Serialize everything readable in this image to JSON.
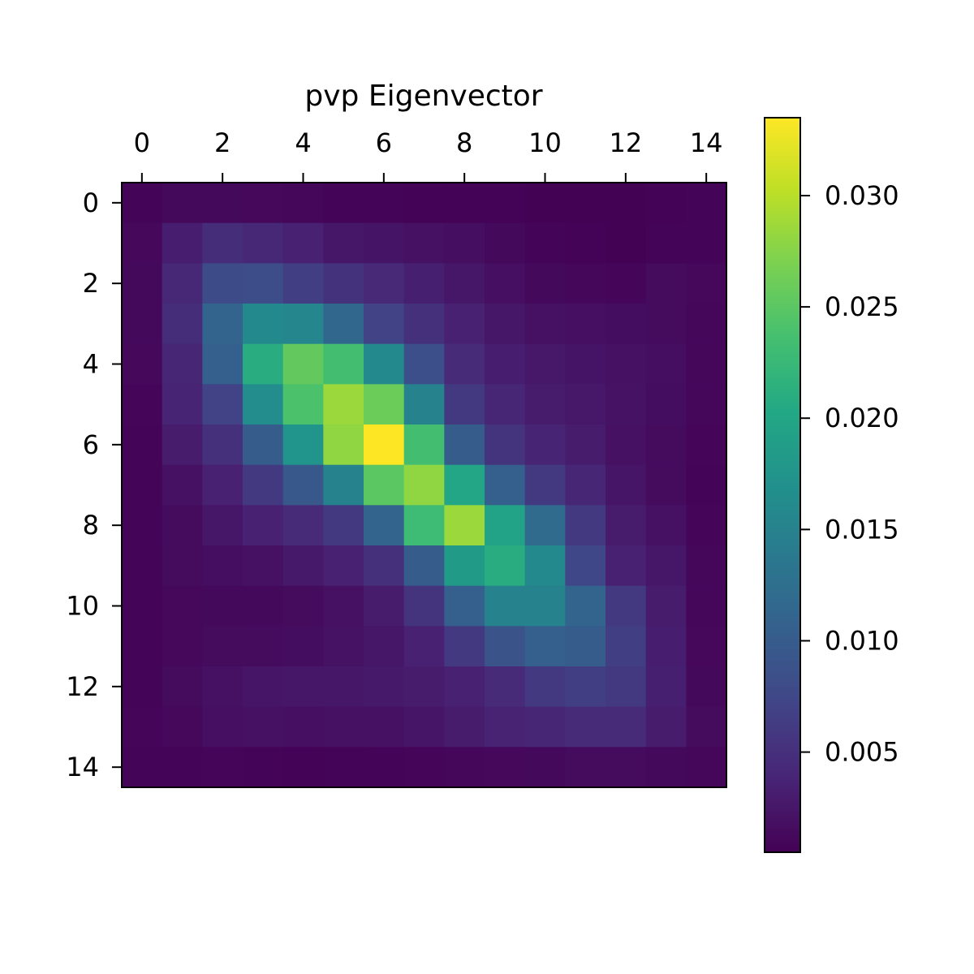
{
  "chart_data": {
    "type": "heatmap",
    "title": "pvp Eigenvector",
    "xlabel": "",
    "ylabel": "",
    "colormap": "viridis",
    "x_ticks": [
      0,
      2,
      4,
      6,
      8,
      10,
      12,
      14
    ],
    "y_ticks": [
      0,
      2,
      4,
      6,
      8,
      10,
      12,
      14
    ],
    "x_tick_position": "top",
    "y_origin": "top",
    "grid": false,
    "colorbar": {
      "vmin": 0.0005,
      "vmax": 0.0335,
      "ticks": [
        0.005,
        0.01,
        0.015,
        0.02,
        0.025,
        0.03
      ],
      "tick_labels": [
        "0.005",
        "0.010",
        "0.015",
        "0.020",
        "0.025",
        "0.030"
      ],
      "position": "right"
    },
    "values": [
      [
        0.0009,
        0.0013,
        0.0013,
        0.0012,
        0.0011,
        0.0009,
        0.0008,
        0.0007,
        0.0007,
        0.0007,
        0.0006,
        0.0006,
        0.0006,
        0.0007,
        0.0008
      ],
      [
        0.0012,
        0.0032,
        0.0047,
        0.0042,
        0.0035,
        0.0025,
        0.0023,
        0.002,
        0.0017,
        0.0013,
        0.0009,
        0.0007,
        0.0006,
        0.0008,
        0.0009
      ],
      [
        0.0013,
        0.0042,
        0.008,
        0.0082,
        0.0065,
        0.0052,
        0.0043,
        0.0033,
        0.0025,
        0.0018,
        0.0013,
        0.0011,
        0.001,
        0.0014,
        0.0012
      ],
      [
        0.0013,
        0.0047,
        0.011,
        0.016,
        0.0155,
        0.0115,
        0.007,
        0.005,
        0.0035,
        0.0025,
        0.002,
        0.0018,
        0.0016,
        0.0015,
        0.0011
      ],
      [
        0.0012,
        0.004,
        0.0105,
        0.021,
        0.0255,
        0.0235,
        0.016,
        0.0085,
        0.0045,
        0.0032,
        0.0027,
        0.0023,
        0.002,
        0.0017,
        0.0011
      ],
      [
        0.001,
        0.0038,
        0.007,
        0.0165,
        0.024,
        0.0285,
        0.026,
        0.015,
        0.006,
        0.004,
        0.003,
        0.0027,
        0.0021,
        0.0016,
        0.0011
      ],
      [
        0.0009,
        0.003,
        0.005,
        0.01,
        0.0175,
        0.028,
        0.0335,
        0.0235,
        0.01,
        0.0055,
        0.0038,
        0.003,
        0.002,
        0.0014,
        0.001
      ],
      [
        0.0008,
        0.002,
        0.0035,
        0.006,
        0.0095,
        0.015,
        0.025,
        0.028,
        0.02,
        0.0105,
        0.006,
        0.004,
        0.0024,
        0.0015,
        0.0009
      ],
      [
        0.0009,
        0.0015,
        0.0025,
        0.0035,
        0.0045,
        0.006,
        0.011,
        0.023,
        0.0285,
        0.0195,
        0.012,
        0.006,
        0.003,
        0.002,
        0.001
      ],
      [
        0.0009,
        0.0014,
        0.0017,
        0.002,
        0.0028,
        0.0035,
        0.005,
        0.01,
        0.0185,
        0.021,
        0.016,
        0.0075,
        0.0035,
        0.0025,
        0.0011
      ],
      [
        0.0008,
        0.0012,
        0.0013,
        0.0013,
        0.0015,
        0.002,
        0.003,
        0.0055,
        0.0105,
        0.015,
        0.015,
        0.011,
        0.006,
        0.003,
        0.0011
      ],
      [
        0.0008,
        0.0012,
        0.0014,
        0.0015,
        0.0016,
        0.0021,
        0.0025,
        0.0035,
        0.006,
        0.009,
        0.0105,
        0.01,
        0.0065,
        0.0032,
        0.0012
      ],
      [
        0.0008,
        0.0015,
        0.002,
        0.0024,
        0.0025,
        0.0025,
        0.0028,
        0.003,
        0.0035,
        0.0045,
        0.006,
        0.0065,
        0.006,
        0.0033,
        0.0013
      ],
      [
        0.001,
        0.0012,
        0.0018,
        0.002,
        0.0018,
        0.002,
        0.002,
        0.0024,
        0.003,
        0.0036,
        0.004,
        0.0045,
        0.0045,
        0.003,
        0.0015
      ],
      [
        0.0008,
        0.0009,
        0.001,
        0.0008,
        0.0007,
        0.0008,
        0.0009,
        0.001,
        0.0011,
        0.0012,
        0.0013,
        0.0014,
        0.0014,
        0.0013,
        0.0011
      ]
    ]
  }
}
